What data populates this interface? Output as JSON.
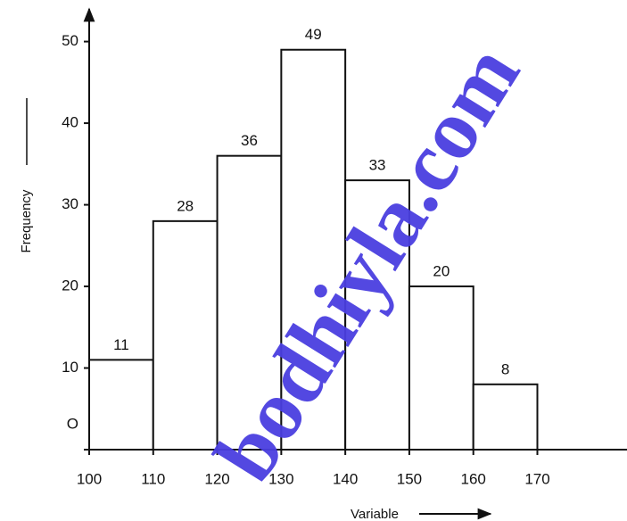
{
  "chart_data": {
    "type": "histogram",
    "xlabel": "Variable",
    "ylabel": "Frequency",
    "bins": [
      100,
      110,
      120,
      130,
      140,
      150,
      160,
      170
    ],
    "values": [
      11,
      28,
      36,
      49,
      33,
      20,
      8
    ],
    "color": "#ffffff",
    "xlim": [
      100,
      184
    ],
    "xticks": [
      100,
      110,
      120,
      130,
      140,
      150,
      160,
      170
    ],
    "ylim": [
      0,
      54
    ],
    "yticks": [
      {
        "value": 0,
        "label": "O"
      },
      10,
      20,
      30,
      40,
      50
    ],
    "grid": false,
    "watermark": "bodhiyla.com"
  }
}
